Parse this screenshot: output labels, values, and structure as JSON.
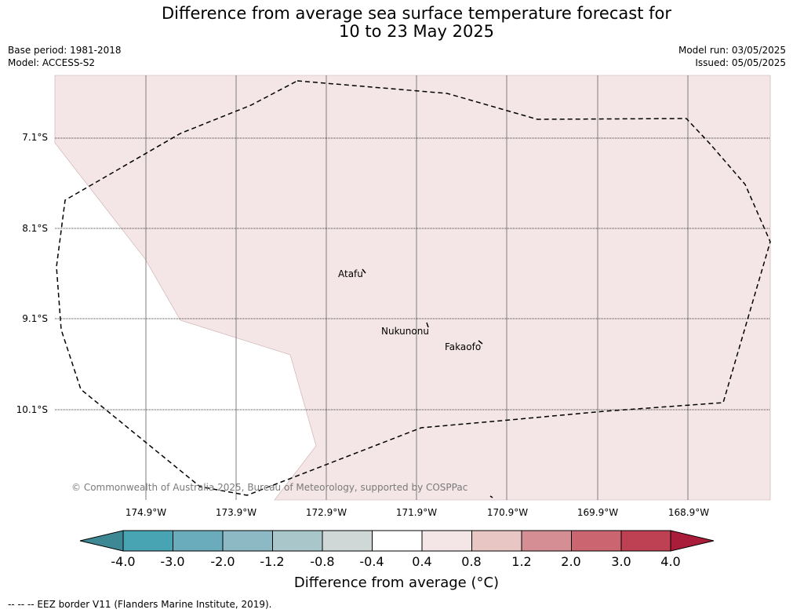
{
  "title_line1": "Difference from average sea surface temperature forecast for",
  "title_line2": "10 to 23 May 2025",
  "base_period": "Base period: 1981-2018",
  "model": "Model: ACCESS-S2",
  "model_run": "Model run: 03/05/2025",
  "issued": "Issued: 05/05/2025",
  "latitudes": [
    "7.1°S",
    "8.1°S",
    "9.1°S",
    "10.1°S"
  ],
  "longitudes": [
    "174.9°W",
    "173.9°W",
    "172.9°W",
    "171.9°W",
    "170.9°W",
    "169.9°W",
    "168.9°W"
  ],
  "islands": [
    "Atafu",
    "Nukunonu",
    "Fakaofo"
  ],
  "copyright": "© Commonwealth of Australia 2025, Bureau of Meteorology, supported by COSPPac",
  "colorbar": {
    "ticks": [
      "-4.0",
      "-3.0",
      "-2.0",
      "-1.2",
      "-0.8",
      "-0.4",
      "0.4",
      "0.8",
      "1.2",
      "2.0",
      "3.0",
      "4.0"
    ],
    "colors": [
      "#3e8794",
      "#48a4b3",
      "#6aacbc",
      "#8cb9c3",
      "#a9c7cb",
      "#d0d8d7",
      "#ffffff",
      "#f4e6e6",
      "#e8c6c4",
      "#d68e95",
      "#cb6570",
      "#be4153",
      "#aa1d3a"
    ],
    "label": "Difference from average (°C)"
  },
  "map_fill_color": "#f4e6e6",
  "source": "--  --  -- EEZ border V11 (Flanders Marine Institute, 2019)."
}
